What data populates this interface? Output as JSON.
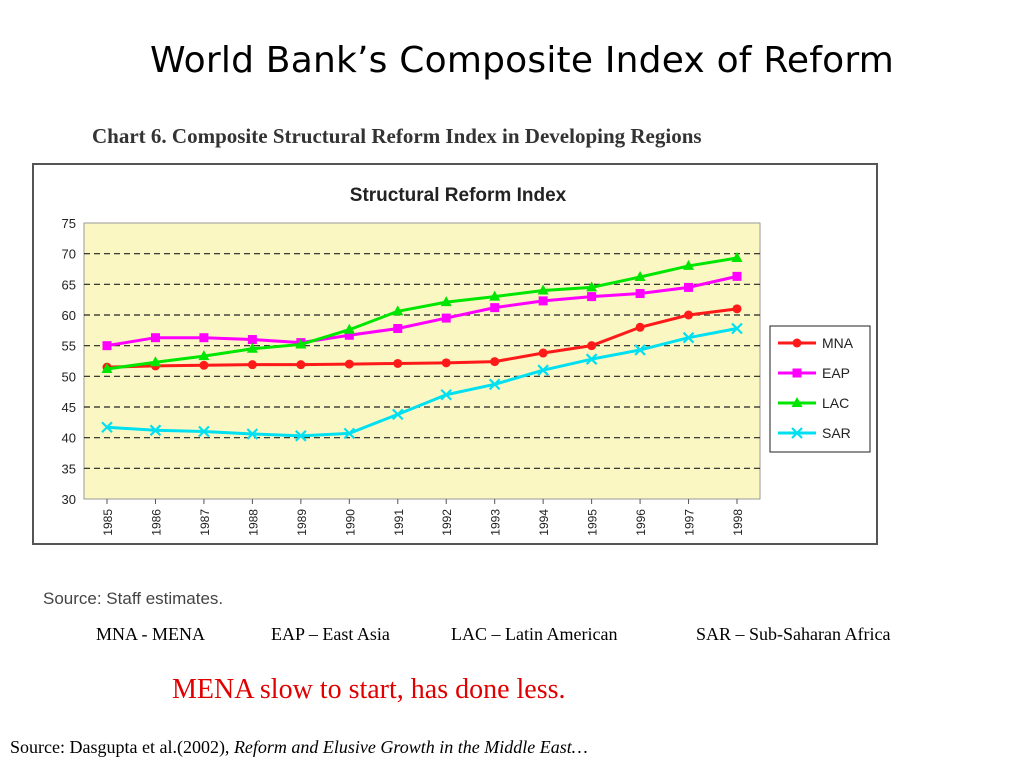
{
  "slide": {
    "title": "World Bank’s Composite Index of Reform",
    "chart_caption": "Chart 6.  Composite Structural Reform Index in Developing Regions",
    "source_note": "Source: Staff estimates.",
    "abbreviations": [
      "MNA - MENA",
      "EAP – East Asia",
      "LAC – Latin American",
      "SAR – Sub-Saharan Africa"
    ],
    "highlight_note": "MENA slow to start, has done less.",
    "citation_prefix": "Source: Dasgupta et al.(2002), ",
    "citation_title": "Reform and Elusive Growth in the Middle East…"
  },
  "chart_data": {
    "type": "line",
    "title": "Structural Reform Index",
    "categories": [
      "1985",
      "1986",
      "1987",
      "1988",
      "1989",
      "1990",
      "1991",
      "1992",
      "1993",
      "1994",
      "1995",
      "1996",
      "1997",
      "1998"
    ],
    "ylim": [
      30,
      75
    ],
    "yticks": [
      30,
      35,
      40,
      45,
      50,
      55,
      60,
      65,
      70,
      75
    ],
    "grid": "dashed horizontal",
    "plot_background": "#fbf7c2",
    "legend_position": "right",
    "series": [
      {
        "name": "MNA",
        "color": "#ff1a1a",
        "marker": "circle",
        "values": [
          51.5,
          51.7,
          51.8,
          51.9,
          51.9,
          52.0,
          52.1,
          52.2,
          52.4,
          53.8,
          55.0,
          58.0,
          60.0,
          61.0
        ]
      },
      {
        "name": "EAP",
        "color": "#ff00ff",
        "marker": "square",
        "values": [
          55.0,
          56.3,
          56.3,
          56.0,
          55.5,
          56.7,
          57.8,
          59.5,
          61.2,
          62.3,
          63.0,
          63.5,
          64.5,
          66.3
        ]
      },
      {
        "name": "LAC",
        "color": "#00e600",
        "marker": "triangle",
        "values": [
          51.2,
          52.3,
          53.3,
          54.5,
          55.2,
          57.6,
          60.6,
          62.1,
          63.0,
          64.0,
          64.5,
          66.2,
          68.0,
          69.3
        ]
      },
      {
        "name": "SAR",
        "color": "#00e0f0",
        "marker": "x",
        "values": [
          41.7,
          41.2,
          41.0,
          40.6,
          40.3,
          40.7,
          43.8,
          47.0,
          48.7,
          51.0,
          52.8,
          54.3,
          56.3,
          57.8
        ]
      }
    ]
  }
}
